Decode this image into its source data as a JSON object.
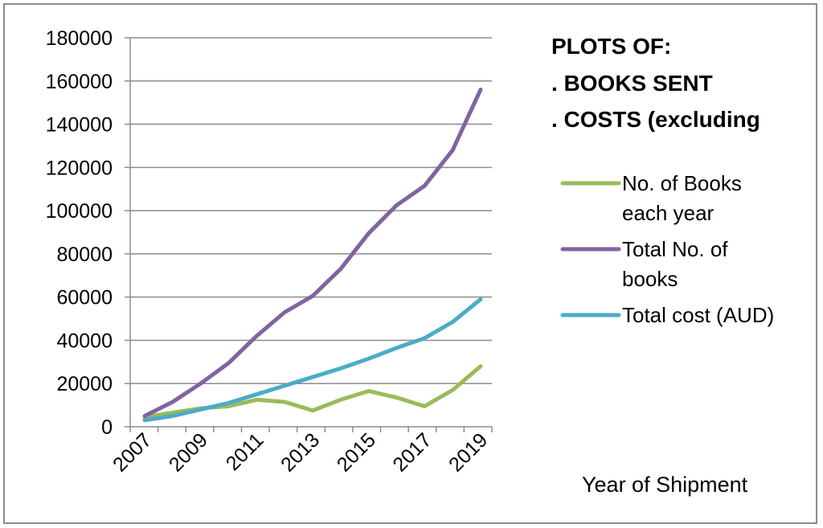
{
  "chart_data": {
    "type": "line",
    "title_lines": [
      "PLOTS OF:",
      ". BOOKS SENT",
      ". COSTS (excluding"
    ],
    "xlabel": "Year of Shipment",
    "ylabel": "",
    "x": [
      2007,
      2008,
      2009,
      2010,
      2011,
      2012,
      2013,
      2014,
      2015,
      2016,
      2017,
      2018,
      2019
    ],
    "x_tick_labels": [
      "2007",
      "2009",
      "2011",
      "2013",
      "2015",
      "2017",
      "2019"
    ],
    "y_tick_labels": [
      "0",
      "20000",
      "40000",
      "60000",
      "80000",
      "100000",
      "120000",
      "140000",
      "160000",
      "180000"
    ],
    "ylim": [
      0,
      180000
    ],
    "grid": true,
    "legend_position": "right",
    "series": [
      {
        "name": "No. of Books each year",
        "legend_lines": [
          "No. of Books",
          "each year"
        ],
        "color": "#9bbb59",
        "values": [
          4500,
          6500,
          8500,
          9500,
          12500,
          11500,
          7500,
          12500,
          16500,
          13500,
          9500,
          17000,
          28000
        ]
      },
      {
        "name": "Total No. of books",
        "legend_lines": [
          "Total No. of",
          "books"
        ],
        "color": "#8064a2",
        "values": [
          5000,
          11500,
          20000,
          29500,
          42000,
          53000,
          60500,
          73000,
          89500,
          102500,
          111500,
          128000,
          156000
        ]
      },
      {
        "name": "Total cost (AUD)",
        "legend_lines": [
          "Total cost (AUD)"
        ],
        "color": "#4bacc6",
        "values": [
          3000,
          5000,
          8000,
          11000,
          15000,
          19000,
          23000,
          27000,
          31500,
          36500,
          41000,
          48500,
          59000
        ]
      }
    ]
  }
}
